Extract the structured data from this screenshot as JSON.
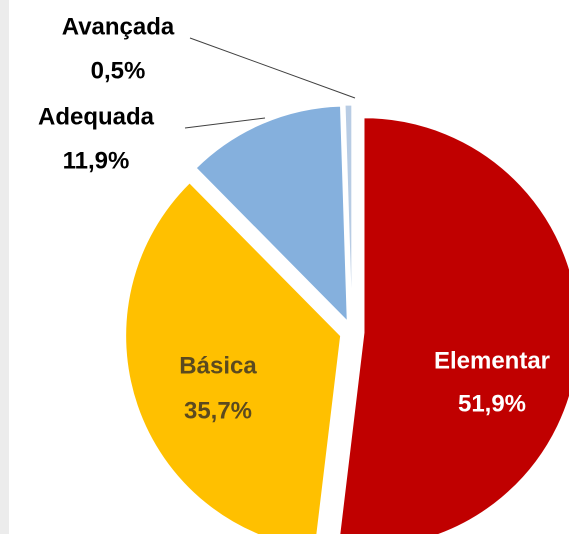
{
  "chart_data": {
    "type": "pie",
    "categories": [
      "Elementar",
      "Básica",
      "Adequada",
      "Avançada"
    ],
    "values": [
      51.9,
      35.7,
      11.9,
      0.5
    ],
    "value_labels": [
      "51,9%",
      "35,7%",
      "11,9%",
      "0,5%"
    ],
    "colors": [
      "#c00000",
      "#ffc000",
      "#85b0dd",
      "#b8cce4"
    ]
  }
}
